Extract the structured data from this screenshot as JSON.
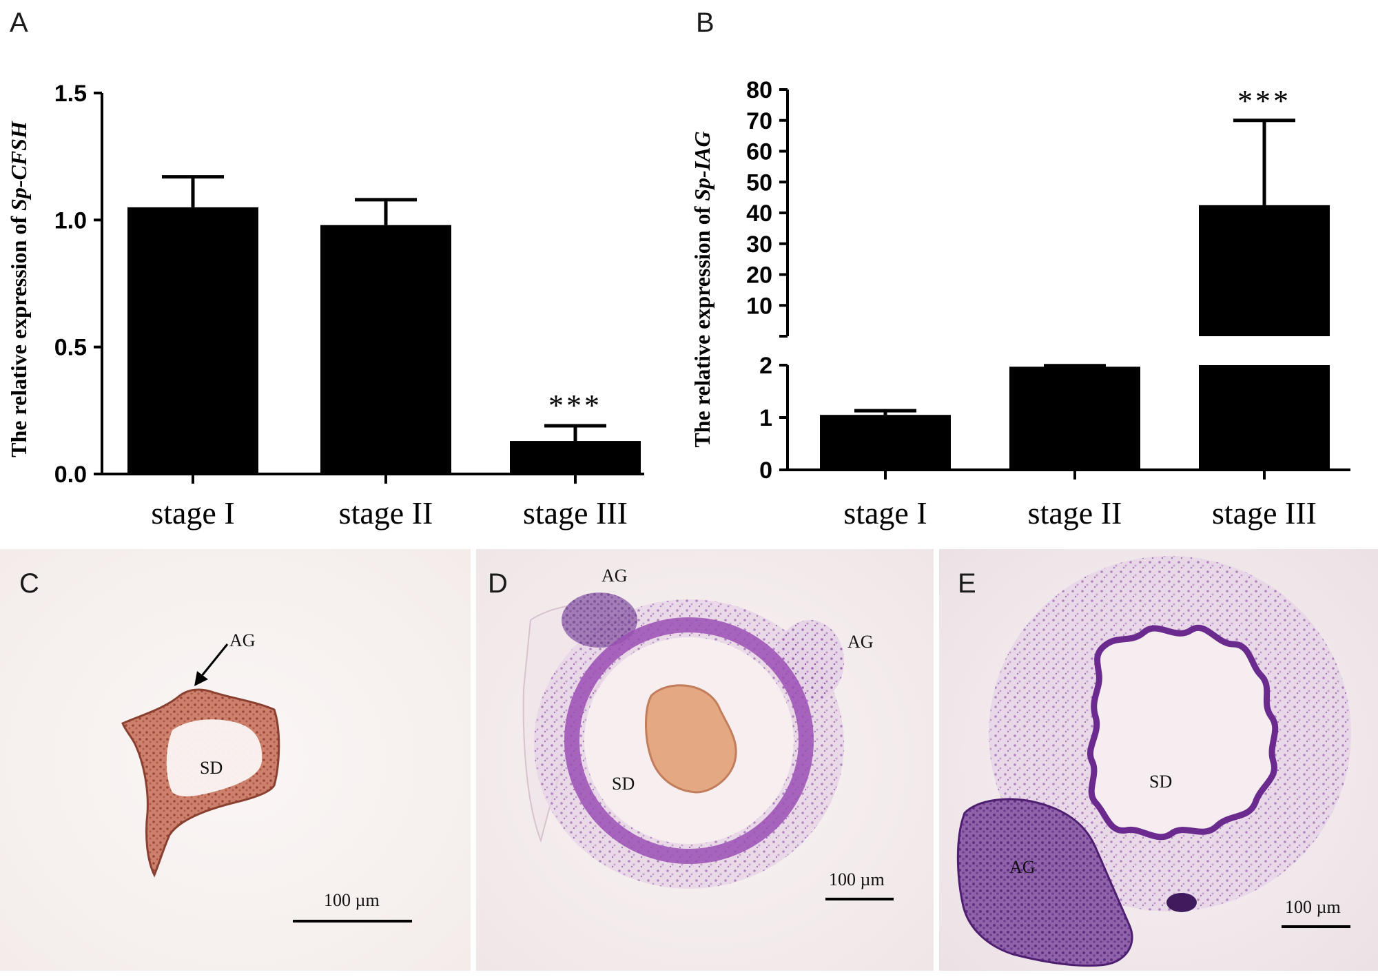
{
  "panels": {
    "a": "A",
    "b": "B",
    "c": "C",
    "d": "D",
    "e": "E"
  },
  "chart_data": [
    {
      "type": "bar",
      "panel": "A",
      "categories": [
        "stage I",
        "stage II",
        "stage III"
      ],
      "values": [
        1.05,
        0.98,
        0.13
      ],
      "errors": [
        0.12,
        0.1,
        0.06
      ],
      "significance": [
        "",
        "",
        "***"
      ],
      "ylabel_prefix": "The relative expression of ",
      "ylabel_gene": "Sp-CFSH",
      "ylim": [
        0,
        1.5
      ],
      "yticks": [
        "0.0",
        "0.5",
        "1.0",
        "1.5"
      ],
      "bar_color": "#000000"
    },
    {
      "type": "bar",
      "panel": "B",
      "categories": [
        "stage I",
        "stage II",
        "stage III"
      ],
      "values": [
        1.05,
        1.97,
        42.5
      ],
      "errors": [
        0.08,
        0.02,
        27.5
      ],
      "significance": [
        "",
        "",
        "***"
      ],
      "ylabel_prefix": "The relative expression of ",
      "ylabel_gene": "Sp-IAG",
      "axis_break": true,
      "lower_ylim": [
        0,
        2
      ],
      "upper_ylim": [
        0,
        80
      ],
      "lower_yticks": [
        "0",
        "1",
        "2"
      ],
      "upper_yticks": [
        "10",
        "20",
        "30",
        "40",
        "50",
        "60",
        "70",
        "80"
      ],
      "bar_color": "#000000"
    }
  ],
  "micrographs": {
    "c": {
      "label_ag": "AG",
      "label_sd": "SD",
      "scale": "100 µm"
    },
    "d": {
      "label_ag1": "AG",
      "label_ag2": "AG",
      "label_sd": "SD",
      "scale": "100 µm"
    },
    "e": {
      "label_ag": "AG",
      "label_sd": "SD",
      "scale": "100 µm"
    }
  }
}
